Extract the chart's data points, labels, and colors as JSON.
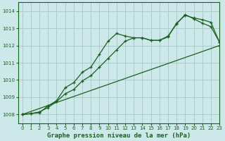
{
  "title": "Graphe pression niveau de la mer (hPa)",
  "background_color": "#cce8e8",
  "grid_color": "#aacccc",
  "line_color": "#1a6020",
  "xlim": [
    -0.5,
    23
  ],
  "ylim": [
    1007.5,
    1014.5
  ],
  "yticks": [
    1008,
    1009,
    1010,
    1011,
    1012,
    1013,
    1014
  ],
  "xticks": [
    0,
    1,
    2,
    3,
    4,
    5,
    6,
    7,
    8,
    9,
    10,
    11,
    12,
    13,
    14,
    15,
    16,
    17,
    18,
    19,
    20,
    21,
    22,
    23
  ],
  "series1_x": [
    0,
    1,
    2,
    3,
    4,
    5,
    6,
    7,
    8,
    9,
    10,
    11,
    12,
    13,
    14,
    15,
    16,
    17,
    18,
    19,
    20,
    21,
    22,
    23
  ],
  "series1_y": [
    1008.0,
    1008.05,
    1008.1,
    1008.5,
    1008.8,
    1009.55,
    1009.85,
    1010.45,
    1010.75,
    1011.5,
    1012.25,
    1012.7,
    1012.55,
    1012.45,
    1012.45,
    1012.3,
    1012.3,
    1012.55,
    1013.25,
    1013.8,
    1013.55,
    1013.3,
    1013.1,
    1012.2
  ],
  "series2_x": [
    0,
    1,
    2,
    3,
    4,
    5,
    6,
    7,
    8,
    9,
    10,
    11,
    12,
    13,
    14,
    15,
    16,
    17,
    18,
    19,
    20,
    21,
    22,
    23
  ],
  "series2_y": [
    1008.0,
    1008.05,
    1008.15,
    1008.4,
    1008.75,
    1009.2,
    1009.45,
    1009.95,
    1010.25,
    1010.75,
    1011.25,
    1011.75,
    1012.25,
    1012.45,
    1012.45,
    1012.3,
    1012.3,
    1012.5,
    1013.3,
    1013.75,
    1013.6,
    1013.5,
    1013.35,
    1012.2
  ],
  "series3_x": [
    0,
    23
  ],
  "series3_y": [
    1008.0,
    1012.0
  ]
}
